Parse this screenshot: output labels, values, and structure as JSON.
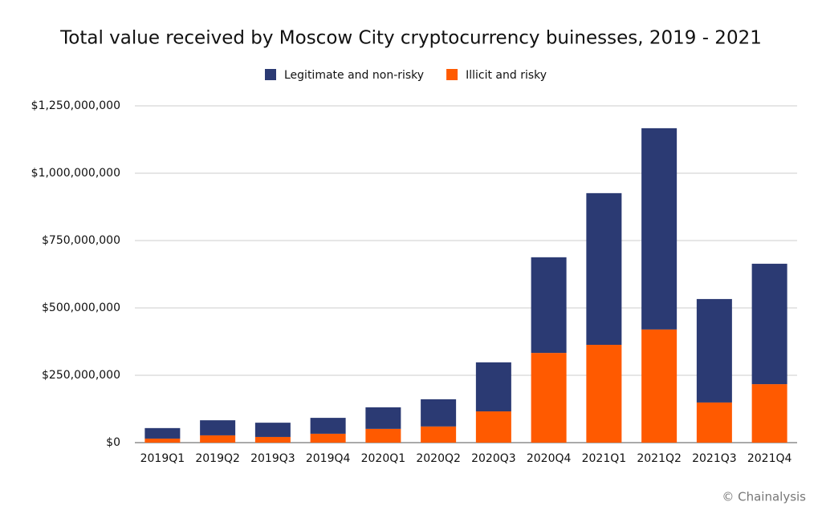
{
  "chart_data": {
    "type": "stacked_bar",
    "title": "Total value received by Moscow City cryptocurrency buinesses, 2019 - 2021",
    "categories": [
      "2019Q1",
      "2019Q2",
      "2019Q3",
      "2019Q4",
      "2020Q1",
      "2020Q2",
      "2020Q3",
      "2020Q4",
      "2021Q1",
      "2021Q2",
      "2021Q3",
      "2021Q4"
    ],
    "series": [
      {
        "name": "Legitimate and non-risky",
        "color": "#2b3a73",
        "values": [
          39000000,
          56000000,
          53000000,
          59000000,
          80000000,
          101000000,
          182000000,
          355000000,
          563000000,
          747000000,
          384000000,
          447000000
        ]
      },
      {
        "name": "Illicit and risky",
        "color": "#ff5a00",
        "values": [
          15000000,
          27000000,
          21000000,
          33000000,
          51000000,
          60000000,
          116000000,
          333000000,
          363000000,
          420000000,
          149000000,
          217000000
        ]
      }
    ],
    "ylim": [
      0,
      1250000000
    ],
    "yticks": [
      {
        "value": 0,
        "label": "$0"
      },
      {
        "value": 250000000,
        "label": "$250,000,000"
      },
      {
        "value": 500000000,
        "label": "$500,000,000"
      },
      {
        "value": 750000000,
        "label": "$750,000,000"
      },
      {
        "value": 1000000000,
        "label": "$1,000,000,000"
      },
      {
        "value": 1250000000,
        "label": "$1,250,000,000"
      }
    ],
    "grid": true,
    "legend": "top",
    "credit": "© Chainalysis"
  }
}
